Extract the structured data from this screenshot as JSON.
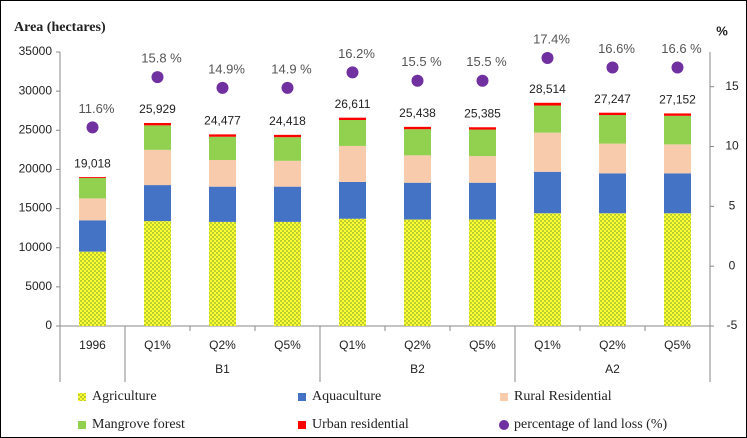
{
  "chart_data": {
    "type": "bar",
    "stacked": true,
    "y_label": "Area (hectares)",
    "y2_label": "%",
    "categories": [
      "1996",
      "Q1%",
      "Q2%",
      "Q5%",
      "Q1%",
      "Q2%",
      "Q5%",
      "Q1%",
      "Q2%",
      "Q5%"
    ],
    "groups": [
      "B1",
      "B2",
      "A2"
    ],
    "series": [
      {
        "name": "Agriculture",
        "color": "#ffff33",
        "values": [
          9500,
          13400,
          13300,
          13300,
          13700,
          13600,
          13600,
          14400,
          14400,
          14400
        ]
      },
      {
        "name": "Aquaculture",
        "color": "#4472c4",
        "values": [
          4000,
          4600,
          4500,
          4500,
          4700,
          4700,
          4700,
          5300,
          5100,
          5100
        ]
      },
      {
        "name": "Rural Residential",
        "color": "#f8cbad",
        "values": [
          2800,
          4500,
          3400,
          3300,
          4600,
          3500,
          3400,
          5000,
          3800,
          3700
        ]
      },
      {
        "name": "Mangrove forest",
        "color": "#92d050",
        "values": [
          2600,
          3129,
          2977,
          3018,
          3311,
          3338,
          3385,
          3464,
          3647,
          3652
        ]
      },
      {
        "name": "Urban residential",
        "color": "#ff0000",
        "values": [
          118,
          300,
          300,
          300,
          300,
          300,
          300,
          350,
          300,
          300
        ]
      },
      {
        "name": "percentage of land loss (%)",
        "color": "#7030a0",
        "axis": "y2",
        "type": "scatter",
        "values": [
          11.6,
          15.8,
          14.9,
          14.9,
          16.2,
          15.5,
          15.5,
          17.4,
          16.6,
          16.6
        ],
        "value_labels": [
          "11.6%",
          "15.8 %",
          "14.9%",
          "14.9 %",
          "16.2%",
          "15.5 %",
          "15.5 %",
          "17.4%",
          "16.6%",
          "16.6 %"
        ]
      }
    ],
    "totals": [
      19018,
      25929,
      24477,
      24418,
      26611,
      25438,
      25385,
      28514,
      27247,
      27152
    ],
    "total_labels": [
      "19,018",
      "25,929",
      "24,477",
      "24,418",
      "26,611",
      "25,438",
      "25,385",
      "28,514",
      "27,247",
      "27,152"
    ],
    "ylim": [
      0,
      35000
    ],
    "yticks": [
      0,
      5000,
      10000,
      15000,
      20000,
      25000,
      30000,
      35000
    ],
    "y2lim": [
      -5,
      17.9
    ],
    "y2ticks": [
      -5,
      0,
      5,
      10,
      15
    ]
  }
}
